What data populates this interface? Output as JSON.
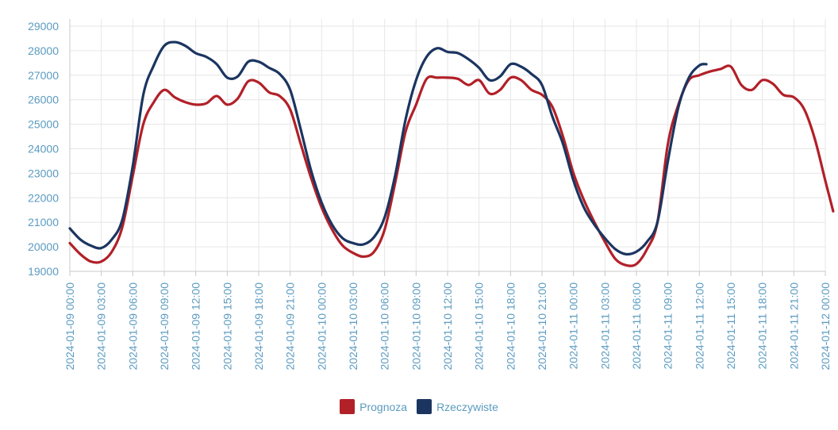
{
  "chart_data": {
    "type": "line",
    "ylim": [
      19000,
      29000
    ],
    "yticks": [
      19000,
      20000,
      21000,
      22000,
      23000,
      24000,
      25000,
      26000,
      27000,
      28000,
      29000
    ],
    "x_start": "2024-01-09 00:00",
    "x_end": "2024-01-12 00:00",
    "xticks": [
      "2024-01-09 00:00",
      "2024-01-09 03:00",
      "2024-01-09 06:00",
      "2024-01-09 09:00",
      "2024-01-09 12:00",
      "2024-01-09 15:00",
      "2024-01-09 18:00",
      "2024-01-09 21:00",
      "2024-01-10 00:00",
      "2024-01-10 03:00",
      "2024-01-10 06:00",
      "2024-01-10 09:00",
      "2024-01-10 12:00",
      "2024-01-10 15:00",
      "2024-01-10 18:00",
      "2024-01-10 21:00",
      "2024-01-11 00:00",
      "2024-01-11 03:00",
      "2024-01-11 06:00",
      "2024-01-11 09:00",
      "2024-01-11 12:00",
      "2024-01-11 15:00",
      "2024-01-11 18:00",
      "2024-01-11 21:00",
      "2024-01-12 00:00"
    ],
    "grid": true,
    "legend_position": "bottom",
    "series": [
      {
        "name": "Prognoza",
        "color": "#b22028",
        "points": [
          [
            "2024-01-09 00:00",
            20150
          ],
          [
            "2024-01-09 01:00",
            19700
          ],
          [
            "2024-01-09 02:00",
            19400
          ],
          [
            "2024-01-09 03:00",
            19400
          ],
          [
            "2024-01-09 04:00",
            19800
          ],
          [
            "2024-01-09 05:00",
            20800
          ],
          [
            "2024-01-09 06:00",
            22900
          ],
          [
            "2024-01-09 07:00",
            25000
          ],
          [
            "2024-01-09 08:00",
            25900
          ],
          [
            "2024-01-09 09:00",
            26400
          ],
          [
            "2024-01-09 10:00",
            26100
          ],
          [
            "2024-01-09 11:00",
            25900
          ],
          [
            "2024-01-09 12:00",
            25800
          ],
          [
            "2024-01-09 13:00",
            25850
          ],
          [
            "2024-01-09 14:00",
            26150
          ],
          [
            "2024-01-09 15:00",
            25800
          ],
          [
            "2024-01-09 16:00",
            26050
          ],
          [
            "2024-01-09 17:00",
            26750
          ],
          [
            "2024-01-09 18:00",
            26700
          ],
          [
            "2024-01-09 19:00",
            26300
          ],
          [
            "2024-01-09 20:00",
            26150
          ],
          [
            "2024-01-09 21:00",
            25600
          ],
          [
            "2024-01-09 22:00",
            24200
          ],
          [
            "2024-01-09 23:00",
            22800
          ],
          [
            "2024-01-10 00:00",
            21600
          ],
          [
            "2024-01-10 01:00",
            20700
          ],
          [
            "2024-01-10 02:00",
            20050
          ],
          [
            "2024-01-10 03:00",
            19750
          ],
          [
            "2024-01-10 04:00",
            19600
          ],
          [
            "2024-01-10 05:00",
            19800
          ],
          [
            "2024-01-10 06:00",
            20700
          ],
          [
            "2024-01-10 07:00",
            22600
          ],
          [
            "2024-01-10 08:00",
            24700
          ],
          [
            "2024-01-10 09:00",
            25800
          ],
          [
            "2024-01-10 10:00",
            26850
          ],
          [
            "2024-01-10 11:00",
            26900
          ],
          [
            "2024-01-10 12:00",
            26900
          ],
          [
            "2024-01-10 13:00",
            26850
          ],
          [
            "2024-01-10 14:00",
            26600
          ],
          [
            "2024-01-10 15:00",
            26800
          ],
          [
            "2024-01-10 16:00",
            26250
          ],
          [
            "2024-01-10 17:00",
            26400
          ],
          [
            "2024-01-10 18:00",
            26900
          ],
          [
            "2024-01-10 19:00",
            26800
          ],
          [
            "2024-01-10 20:00",
            26400
          ],
          [
            "2024-01-10 21:00",
            26200
          ],
          [
            "2024-01-10 22:00",
            25700
          ],
          [
            "2024-01-10 23:00",
            24500
          ],
          [
            "2024-01-11 00:00",
            23000
          ],
          [
            "2024-01-11 01:00",
            21900
          ],
          [
            "2024-01-11 02:00",
            21000
          ],
          [
            "2024-01-11 03:00",
            20200
          ],
          [
            "2024-01-11 04:00",
            19500
          ],
          [
            "2024-01-11 05:00",
            19250
          ],
          [
            "2024-01-11 06:00",
            19300
          ],
          [
            "2024-01-11 07:00",
            19900
          ],
          [
            "2024-01-11 08:00",
            21000
          ],
          [
            "2024-01-11 09:00",
            24200
          ],
          [
            "2024-01-11 10:00",
            25800
          ],
          [
            "2024-01-11 11:00",
            26800
          ],
          [
            "2024-01-11 12:00",
            27000
          ],
          [
            "2024-01-11 13:00",
            27150
          ],
          [
            "2024-01-11 14:00",
            27250
          ],
          [
            "2024-01-11 15:00",
            27350
          ],
          [
            "2024-01-11 16:00",
            26600
          ],
          [
            "2024-01-11 17:00",
            26400
          ],
          [
            "2024-01-11 18:00",
            26800
          ],
          [
            "2024-01-11 19:00",
            26650
          ],
          [
            "2024-01-11 20:00",
            26200
          ],
          [
            "2024-01-11 21:00",
            26100
          ],
          [
            "2024-01-11 22:00",
            25600
          ],
          [
            "2024-01-11 23:00",
            24400
          ],
          [
            "2024-01-12 00:00",
            22700
          ],
          [
            "2024-01-12 00:45",
            21450
          ]
        ]
      },
      {
        "name": "Rzeczywiste",
        "color": "#1b3560",
        "points": [
          [
            "2024-01-09 00:00",
            20750
          ],
          [
            "2024-01-09 01:00",
            20300
          ],
          [
            "2024-01-09 02:00",
            20050
          ],
          [
            "2024-01-09 03:00",
            19950
          ],
          [
            "2024-01-09 04:00",
            20300
          ],
          [
            "2024-01-09 05:00",
            21100
          ],
          [
            "2024-01-09 06:00",
            23300
          ],
          [
            "2024-01-09 07:00",
            26200
          ],
          [
            "2024-01-09 08:00",
            27400
          ],
          [
            "2024-01-09 09:00",
            28200
          ],
          [
            "2024-01-09 10:00",
            28350
          ],
          [
            "2024-01-09 11:00",
            28200
          ],
          [
            "2024-01-09 12:00",
            27900
          ],
          [
            "2024-01-09 13:00",
            27750
          ],
          [
            "2024-01-09 14:00",
            27450
          ],
          [
            "2024-01-09 15:00",
            26900
          ],
          [
            "2024-01-09 16:00",
            26950
          ],
          [
            "2024-01-09 17:00",
            27550
          ],
          [
            "2024-01-09 18:00",
            27550
          ],
          [
            "2024-01-09 19:00",
            27300
          ],
          [
            "2024-01-09 20:00",
            27050
          ],
          [
            "2024-01-09 21:00",
            26400
          ],
          [
            "2024-01-09 22:00",
            24800
          ],
          [
            "2024-01-09 23:00",
            23100
          ],
          [
            "2024-01-10 00:00",
            21800
          ],
          [
            "2024-01-10 01:00",
            20900
          ],
          [
            "2024-01-10 02:00",
            20350
          ],
          [
            "2024-01-10 03:00",
            20150
          ],
          [
            "2024-01-10 04:00",
            20100
          ],
          [
            "2024-01-10 05:00",
            20400
          ],
          [
            "2024-01-10 06:00",
            21200
          ],
          [
            "2024-01-10 07:00",
            22900
          ],
          [
            "2024-01-10 08:00",
            25200
          ],
          [
            "2024-01-10 09:00",
            26800
          ],
          [
            "2024-01-10 10:00",
            27750
          ],
          [
            "2024-01-10 11:00",
            28100
          ],
          [
            "2024-01-10 12:00",
            27950
          ],
          [
            "2024-01-10 13:00",
            27900
          ],
          [
            "2024-01-10 14:00",
            27650
          ],
          [
            "2024-01-10 15:00",
            27300
          ],
          [
            "2024-01-10 16:00",
            26800
          ],
          [
            "2024-01-10 17:00",
            26950
          ],
          [
            "2024-01-10 18:00",
            27450
          ],
          [
            "2024-01-10 19:00",
            27350
          ],
          [
            "2024-01-10 20:00",
            27050
          ],
          [
            "2024-01-10 21:00",
            26600
          ],
          [
            "2024-01-10 22:00",
            25300
          ],
          [
            "2024-01-10 23:00",
            24200
          ],
          [
            "2024-01-11 00:00",
            22700
          ],
          [
            "2024-01-11 01:00",
            21600
          ],
          [
            "2024-01-11 02:00",
            20900
          ],
          [
            "2024-01-11 03:00",
            20350
          ],
          [
            "2024-01-11 04:00",
            19900
          ],
          [
            "2024-01-11 05:00",
            19700
          ],
          [
            "2024-01-11 06:00",
            19800
          ],
          [
            "2024-01-11 07:00",
            20200
          ],
          [
            "2024-01-11 08:00",
            21000
          ],
          [
            "2024-01-11 09:00",
            23500
          ],
          [
            "2024-01-11 10:00",
            25700
          ],
          [
            "2024-01-11 11:00",
            26900
          ],
          [
            "2024-01-11 12:00",
            27400
          ],
          [
            "2024-01-11 12:40",
            27450
          ]
        ]
      }
    ]
  }
}
